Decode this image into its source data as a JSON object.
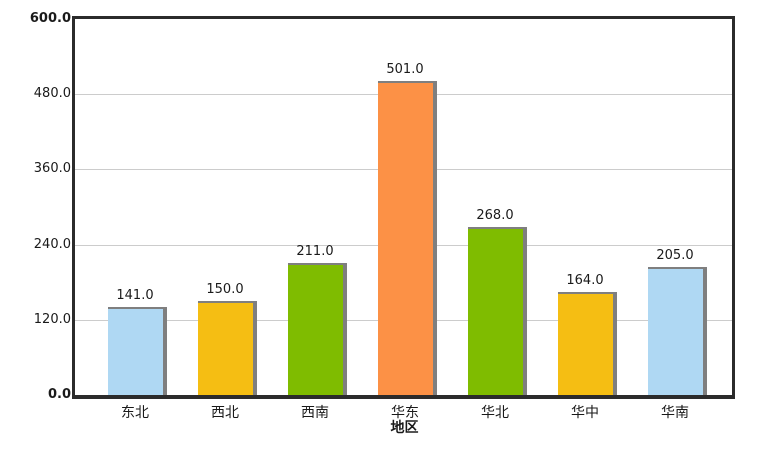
{
  "chart_data": {
    "type": "bar",
    "title": "",
    "xlabel": "地区",
    "ylabel": "",
    "categories": [
      "东北",
      "西北",
      "西南",
      "华东",
      "华北",
      "华中",
      "华南"
    ],
    "values": [
      141.0,
      150.0,
      211.0,
      501.0,
      268.0,
      164.0,
      205.0
    ],
    "value_labels": [
      "141.0",
      "150.0",
      "211.0",
      "501.0",
      "268.0",
      "164.0",
      "205.0"
    ],
    "bar_colors": [
      "#AFD8F3",
      "#F5BE13",
      "#7FBC00",
      "#FC9146",
      "#7FBC00",
      "#F5BE13",
      "#AFD8F3"
    ],
    "ylim": [
      0,
      600
    ],
    "ytick_values": [
      0,
      120,
      240,
      360,
      480,
      600
    ],
    "ytick_labels": [
      "0.0",
      "120.0",
      "240.0",
      "360.0",
      "480.0",
      "600.0"
    ],
    "grid": true,
    "legend": false
  },
  "colors": {
    "background": "#FFFFFF",
    "frame": "#2B2B2B",
    "gridline": "#CCCCCC",
    "bar_shadow": "#7F7F7F",
    "text": "#1A1A1A"
  }
}
